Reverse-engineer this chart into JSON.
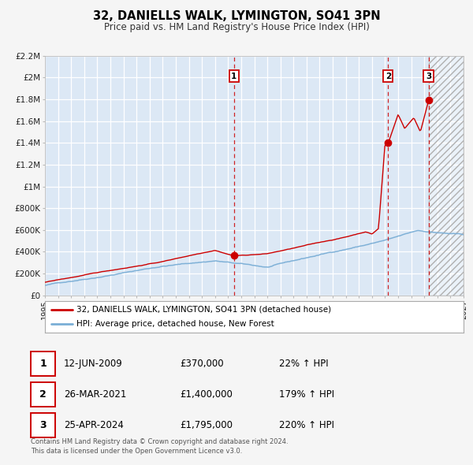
{
  "title": "32, DANIELLS WALK, LYMINGTON, SO41 3PN",
  "subtitle": "Price paid vs. HM Land Registry's House Price Index (HPI)",
  "legend_property": "32, DANIELLS WALK, LYMINGTON, SO41 3PN (detached house)",
  "legend_hpi": "HPI: Average price, detached house, New Forest",
  "property_color": "#cc0000",
  "hpi_color": "#7aaed6",
  "background_plot": "#dce8f5",
  "background_fig": "#f5f5f5",
  "grid_color": "#ffffff",
  "xmin": 1995,
  "xmax": 2027,
  "ymin": 0,
  "ymax": 2200000,
  "yticks": [
    0,
    200000,
    400000,
    600000,
    800000,
    1000000,
    1200000,
    1400000,
    1600000,
    1800000,
    2000000,
    2200000
  ],
  "ytick_labels": [
    "£0",
    "£200K",
    "£400K",
    "£600K",
    "£800K",
    "£1M",
    "£1.2M",
    "£1.4M",
    "£1.6M",
    "£1.8M",
    "£2M",
    "£2.2M"
  ],
  "trans_years": [
    2009.45,
    2021.23,
    2024.32
  ],
  "trans_prices": [
    370000,
    1400000,
    1795000
  ],
  "trans_labels": [
    "1",
    "2",
    "3"
  ],
  "trans_dates": [
    "12-JUN-2009",
    "26-MAR-2021",
    "25-APR-2024"
  ],
  "trans_prices_str": [
    "£370,000",
    "£1,400,000",
    "£1,795,000"
  ],
  "trans_pcts": [
    "22% ↑ HPI",
    "179% ↑ HPI",
    "220% ↑ HPI"
  ],
  "hatch_region_start": 2024.32,
  "footer": "Contains HM Land Registry data © Crown copyright and database right 2024.\nThis data is licensed under the Open Government Licence v3.0."
}
